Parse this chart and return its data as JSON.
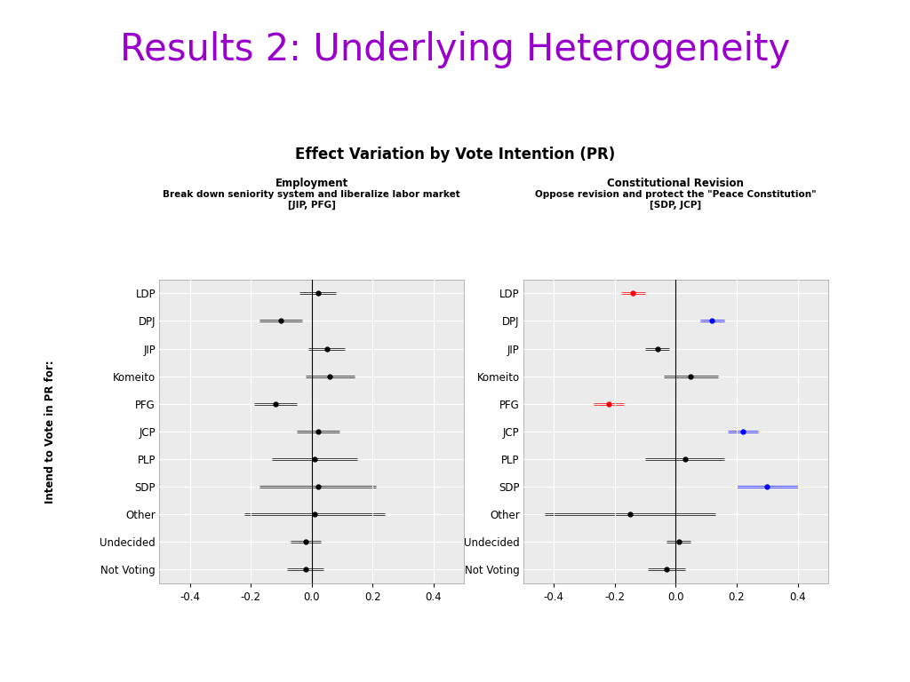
{
  "title": "Results 2: Underlying Heterogeneity",
  "title_color": "#9900cc",
  "supertitle": "Effect Variation by Vote Intention (PR)",
  "left_panel": {
    "title_line1": "Employment",
    "title_line2": "Break down seniority system and liberalize labor market",
    "title_line3": "[JIP, PFG]"
  },
  "right_panel": {
    "title_line1": "Constitutional Revision",
    "title_line2": "Oppose revision and protect the \"Peace Constitution\"",
    "title_line3": "[SDP, JCP]"
  },
  "ylabel": "Intend to Vote in PR for:",
  "categories": [
    "LDP",
    "DPJ",
    "JIP",
    "Komeito",
    "PFG",
    "JCP",
    "PLP",
    "SDP",
    "Other",
    "Undecided",
    "Not Voting"
  ],
  "left_estimates": [
    0.02,
    -0.1,
    0.05,
    0.06,
    -0.12,
    0.02,
    0.01,
    0.02,
    0.01,
    -0.02,
    -0.02
  ],
  "left_lo": [
    -0.04,
    -0.17,
    -0.01,
    -0.02,
    -0.19,
    -0.05,
    -0.13,
    -0.17,
    -0.22,
    -0.07,
    -0.08
  ],
  "left_hi": [
    0.08,
    -0.03,
    0.11,
    0.14,
    -0.05,
    0.09,
    0.15,
    0.21,
    0.24,
    0.03,
    0.04
  ],
  "left_colors": [
    "black",
    "black",
    "black",
    "black",
    "black",
    "black",
    "black",
    "black",
    "black",
    "black",
    "black"
  ],
  "right_estimates": [
    -0.14,
    0.12,
    -0.06,
    0.05,
    -0.22,
    0.22,
    0.03,
    0.3,
    -0.15,
    0.01,
    -0.03
  ],
  "right_lo": [
    -0.18,
    0.08,
    -0.1,
    -0.04,
    -0.27,
    0.17,
    -0.1,
    0.2,
    -0.43,
    -0.03,
    -0.09
  ],
  "right_hi": [
    -0.1,
    0.16,
    -0.02,
    0.14,
    -0.17,
    0.27,
    0.16,
    0.4,
    0.13,
    0.05,
    0.03
  ],
  "right_colors": [
    "red",
    "blue",
    "black",
    "black",
    "red",
    "blue",
    "black",
    "blue",
    "black",
    "black",
    "black"
  ],
  "xlim": [
    -0.5,
    0.5
  ],
  "xticks": [
    -0.4,
    -0.2,
    0.0,
    0.2,
    0.4
  ],
  "background_color": "#ffffff",
  "panel_bg": "#ebebeb",
  "grid_color": "#ffffff"
}
